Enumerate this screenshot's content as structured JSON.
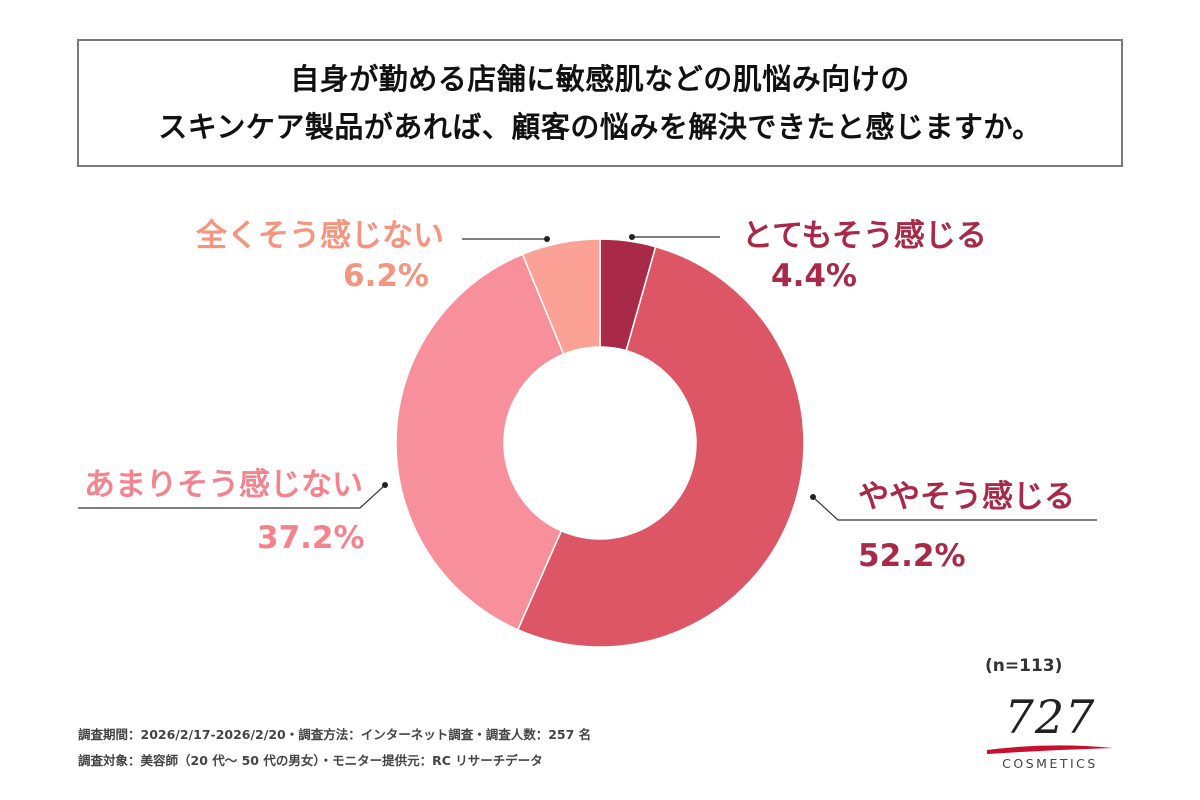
{
  "title": {
    "line1": "自身が勤める店舗に敏感肌などの肌悩み向けの",
    "line2": "スキンケア製品があれば、顧客の悩みを解決できたと感じますか。"
  },
  "chart_data": {
    "type": "pie",
    "variant": "donut",
    "slices": [
      {
        "label": "とてもそう感じる",
        "value": 4.4,
        "value_label": "4.4%",
        "color": "#a82a48",
        "label_color": "#a82a48"
      },
      {
        "label": "ややそう感じる",
        "value": 52.2,
        "value_label": "52.2%",
        "color": "#dc5666",
        "label_color": "#a82a48"
      },
      {
        "label": "あまりそう感じない",
        "value": 37.2,
        "value_label": "37.2%",
        "color": "#f7909a",
        "label_color": "#f5838e"
      },
      {
        "label": "全くそう感じない",
        "value": 6.2,
        "value_label": "6.2%",
        "color": "#fba196",
        "label_color": "#f5957f"
      }
    ],
    "start_angle": "12 o'clock",
    "direction": "clockwise"
  },
  "sample_size": "(n=113)",
  "footnotes": {
    "line1": "調査期間：2026/2/17-2026/2/20・調査方法：インターネット調査・調査人数：257 名",
    "line2": "調査対象：美容師（20 代～ 50 代の男女）・モニター提供元：RC リサーチデータ"
  },
  "logo": {
    "number": "727",
    "text": "COSMETICS",
    "accent_color": "#c8102e"
  }
}
